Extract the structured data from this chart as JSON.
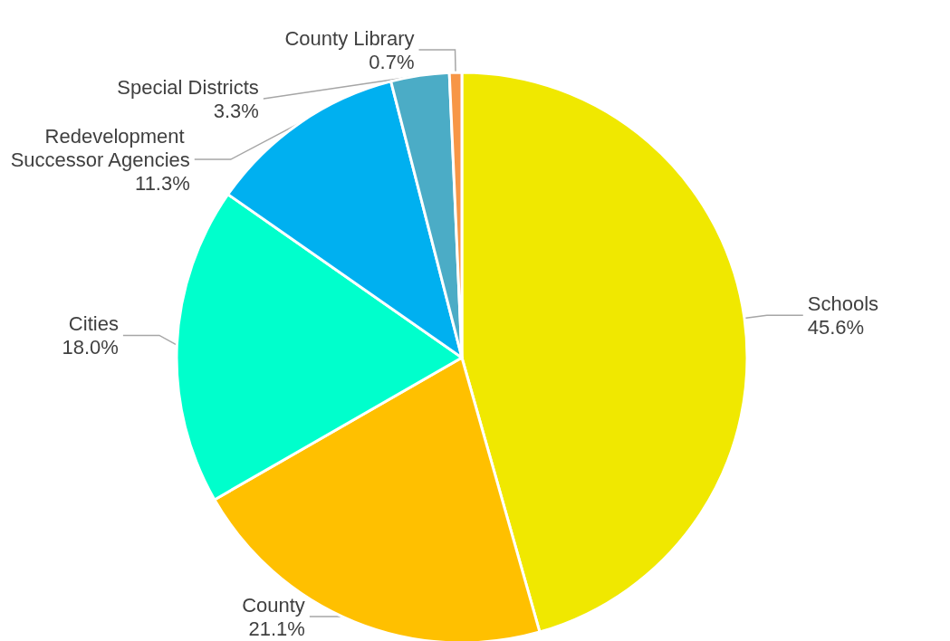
{
  "chart_data": {
    "type": "pie",
    "categories": [
      "Schools",
      "County",
      "Cities",
      "Redevelopment Successor Agencies",
      "Special Districts",
      "County Library"
    ],
    "values": [
      45.6,
      21.1,
      18.0,
      11.3,
      3.3,
      0.7
    ],
    "value_labels": [
      "45.6%",
      "21.1%",
      "18.0%",
      "11.3%",
      "3.3%",
      "0.7%"
    ],
    "colors": [
      "#f0e800",
      "#ffc000",
      "#00ffcc",
      "#00b0f0",
      "#4bacc6",
      "#f79646"
    ],
    "legend": false
  }
}
